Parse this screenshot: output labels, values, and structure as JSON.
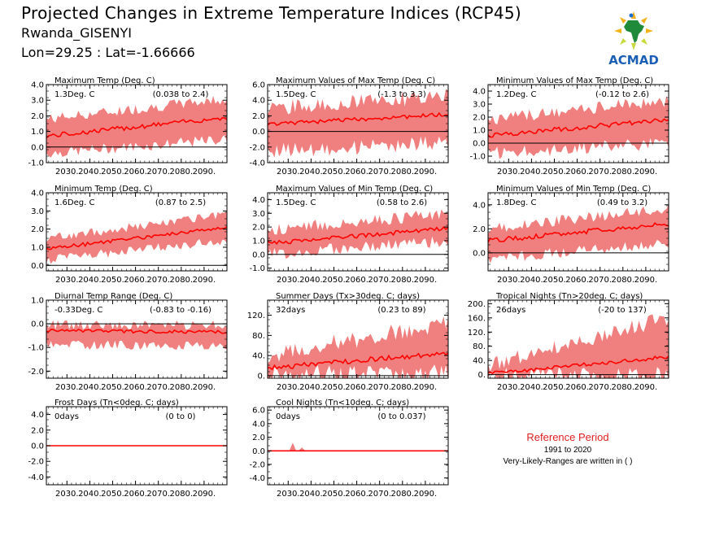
{
  "header": {
    "title": "Projected Changes in Extreme Temperature Indices (RCP45)",
    "station": "Rwanda_GISENYI",
    "coords": "Lon=29.25 : Lat=-1.66666"
  },
  "logo": {
    "text": "ACMAD",
    "icon": "africa-map-logo-icon"
  },
  "reference": {
    "title": "Reference Period",
    "years": "1991 to 2020",
    "note": "Very-Likely-Ranges are written in ( )"
  },
  "colors": {
    "band": "#f08080",
    "line": "#ff0000",
    "zero": "#000000"
  },
  "chart_data": [
    {
      "type": "area",
      "title": "Maximum Temp (Deg. C)",
      "value": "1.3Deg. C",
      "range": "(0.038 to 2.4)",
      "ylim": [
        -1.0,
        4.0
      ],
      "yticks": [
        "4.0",
        "3.0",
        "2.0",
        "1.0",
        "0.0",
        "-1.0"
      ],
      "ytick_values": [
        4,
        3,
        2,
        1,
        0,
        -1
      ],
      "x": [
        2021,
        2100
      ],
      "xticks": [
        "2030.",
        "2040.",
        "2050.",
        "2060.",
        "2070.",
        "2080.",
        "2090."
      ],
      "median": {
        "start": 0.7,
        "end": 1.9,
        "noise": 0.15
      },
      "band": {
        "low_start": -0.4,
        "low_end": 0.5,
        "high_start": 1.8,
        "high_end": 3.1,
        "noise": 0.35
      }
    },
    {
      "type": "area",
      "title": "Maximum Values of Max Temp (Deg. C)",
      "value": "1.5Deg. C",
      "range": "(-1.3 to 3.3)",
      "ylim": [
        -4.0,
        6.0
      ],
      "yticks": [
        "6.0",
        "4.0",
        "2.0",
        "0.0",
        "-2.0",
        "-4.0"
      ],
      "ytick_values": [
        6,
        4,
        2,
        0,
        -2,
        -4
      ],
      "x": [
        2021,
        2100
      ],
      "xticks": [
        "2030.",
        "2040.",
        "2050.",
        "2060.",
        "2070.",
        "2080.",
        "2090."
      ],
      "median": {
        "start": 0.9,
        "end": 2.2,
        "noise": 0.25
      },
      "band": {
        "low_start": -2.5,
        "low_end": -1.5,
        "high_start": 3.0,
        "high_end": 4.5,
        "noise": 1.0
      }
    },
    {
      "type": "area",
      "title": "Minimum Values of Max Temp (Deg. C)",
      "value": "1.2Deg. C",
      "range": "(-0.12 to 2.6)",
      "ylim": [
        -1.5,
        4.5
      ],
      "yticks": [
        "4.0",
        "3.0",
        "2.0",
        "1.0",
        "0.0",
        "-1.0"
      ],
      "ytick_values": [
        4,
        3,
        2,
        1,
        0,
        -1
      ],
      "x": [
        2021,
        2100
      ],
      "xticks": [
        "2030.",
        "2040.",
        "2050.",
        "2060.",
        "2070.",
        "2080.",
        "2090."
      ],
      "median": {
        "start": 0.6,
        "end": 1.8,
        "noise": 0.18
      },
      "band": {
        "low_start": -0.8,
        "low_end": 0.0,
        "high_start": 1.8,
        "high_end": 3.3,
        "noise": 0.5
      }
    },
    {
      "type": "area",
      "title": "Minimum Temp (Deg. C)",
      "value": "1.6Deg. C",
      "range": "(0.87 to 2.5)",
      "ylim": [
        -0.3,
        4.0
      ],
      "yticks": [
        "4.0",
        "3.0",
        "2.0",
        "1.0",
        "0.0"
      ],
      "ytick_values": [
        4,
        3,
        2,
        1,
        0
      ],
      "x": [
        2021,
        2100
      ],
      "xticks": [
        "2030.",
        "2040.",
        "2050.",
        "2060.",
        "2070.",
        "2080.",
        "2090."
      ],
      "median": {
        "start": 0.9,
        "end": 2.1,
        "noise": 0.1
      },
      "band": {
        "low_start": 0.3,
        "low_end": 1.4,
        "high_start": 1.5,
        "high_end": 2.8,
        "noise": 0.25
      }
    },
    {
      "type": "area",
      "title": "Maximum Values of Min Temp (Deg. C)",
      "value": "1.5Deg. C",
      "range": "(0.58 to 2.6)",
      "ylim": [
        -1.2,
        4.5
      ],
      "yticks": [
        "4.0",
        "3.0",
        "2.0",
        "1.0",
        "0.0",
        "-1.0"
      ],
      "ytick_values": [
        4,
        3,
        2,
        1,
        0,
        -1
      ],
      "x": [
        2021,
        2100
      ],
      "xticks": [
        "2030.",
        "2040.",
        "2050.",
        "2060.",
        "2070.",
        "2080.",
        "2090."
      ],
      "median": {
        "start": 0.8,
        "end": 1.9,
        "noise": 0.15
      },
      "band": {
        "low_start": 0.0,
        "low_end": 1.0,
        "high_start": 1.8,
        "high_end": 3.0,
        "noise": 0.45
      }
    },
    {
      "type": "area",
      "title": "Minimum Values of Min Temp (Deg. C)",
      "value": "1.8Deg. C",
      "range": "(0.49 to 3.2)",
      "ylim": [
        -1.5,
        5.0
      ],
      "yticks": [
        "4.0",
        "2.0",
        "0.0"
      ],
      "ytick_values": [
        4,
        2,
        0
      ],
      "x": [
        2021,
        2100
      ],
      "xticks": [
        "2030.",
        "2040.",
        "2050.",
        "2060.",
        "2070.",
        "2080.",
        "2090."
      ],
      "median": {
        "start": 1.0,
        "end": 2.4,
        "noise": 0.2
      },
      "band": {
        "low_start": -0.5,
        "low_end": 0.8,
        "high_start": 2.0,
        "high_end": 3.7,
        "noise": 0.45
      }
    },
    {
      "type": "area",
      "title": "Diurnal Temp Range (Deg. C)",
      "value": "-0.33Deg. C",
      "range": "(-0.83 to -0.16)",
      "ylim": [
        -2.3,
        1.0
      ],
      "yticks": [
        "1.0",
        "0.0",
        "-1.0",
        "-2.0"
      ],
      "ytick_values": [
        1,
        0,
        -1,
        -2
      ],
      "x": [
        2021,
        2100
      ],
      "xticks": [
        "2030.",
        "2040.",
        "2050.",
        "2060.",
        "2070.",
        "2080.",
        "2090."
      ],
      "median": {
        "start": -0.3,
        "end": -0.35,
        "noise": 0.07
      },
      "band": {
        "low_start": -0.9,
        "low_end": -0.9,
        "high_start": -0.05,
        "high_end": -0.05,
        "noise": 0.2
      }
    },
    {
      "type": "area",
      "title": "Summer Days (Tx>30deg. C; days)",
      "value": "32days",
      "range": "(0.23 to 89)",
      "ylim": [
        -5,
        150
      ],
      "yticks": [
        "120.",
        "80.",
        "40.",
        "0."
      ],
      "ytick_values": [
        120,
        80,
        40,
        0
      ],
      "x": [
        2021,
        2100
      ],
      "xticks": [
        "2030.",
        "2040.",
        "2050.",
        "2060.",
        "2070.",
        "2080.",
        "2090."
      ],
      "median": {
        "start": 15,
        "end": 45,
        "noise": 5
      },
      "band": {
        "low_start": 2,
        "low_end": 5,
        "high_start": 40,
        "high_end": 105,
        "noise": 18
      }
    },
    {
      "type": "area",
      "title": "Tropical Nights (Tn>20deg. C; days)",
      "value": "26days",
      "range": "(-20 to 137)",
      "ylim": [
        -10,
        210
      ],
      "yticks": [
        "200.",
        "160.",
        "120.",
        "80.",
        "40.",
        "0."
      ],
      "ytick_values": [
        200,
        160,
        120,
        80,
        40,
        0
      ],
      "x": [
        2021,
        2100
      ],
      "xticks": [
        "2030.",
        "2040.",
        "2050.",
        "2060.",
        "2070.",
        "2080.",
        "2090."
      ],
      "median": {
        "start": 3,
        "end": 50,
        "noise": 5
      },
      "band": {
        "low_start": 0,
        "low_end": 0,
        "high_start": 25,
        "high_end": 160,
        "noise": 22
      }
    },
    {
      "type": "area",
      "title": "Frost Days (Tn<0deg. C; days)",
      "value": "0days",
      "range": "(0 to 0)",
      "ylim": [
        -5.0,
        5.0
      ],
      "yticks": [
        "4.0",
        "2.0",
        "0.0",
        "-2.0",
        "-4.0"
      ],
      "ytick_values": [
        4,
        2,
        0,
        -2,
        -4
      ],
      "x": [
        2021,
        2100
      ],
      "xticks": [
        "2030.",
        "2040.",
        "2050.",
        "2060.",
        "2070.",
        "2080.",
        "2090."
      ],
      "median": {
        "start": 0,
        "end": 0,
        "noise": 0
      },
      "band": {
        "low_start": 0,
        "low_end": 0,
        "high_start": 0,
        "high_end": 0,
        "noise": 0
      }
    },
    {
      "type": "area",
      "title": "Cool Nights (Tn<10deg. C; days)",
      "value": "0days",
      "range": "(0 to 0.037)",
      "ylim": [
        -5.0,
        6.5
      ],
      "yticks": [
        "6.0",
        "4.0",
        "2.0",
        "0.0",
        "-2.0",
        "-4.0"
      ],
      "ytick_values": [
        6,
        4,
        2,
        0,
        -2,
        -4
      ],
      "x": [
        2021,
        2100
      ],
      "xticks": [
        "2030.",
        "2040.",
        "2050.",
        "2060.",
        "2070.",
        "2080.",
        "2090."
      ],
      "median": {
        "start": 0,
        "end": 0,
        "noise": 0
      },
      "band": {
        "low_start": 0,
        "low_end": 0,
        "high_start": 0,
        "high_end": 0,
        "noise": 0
      },
      "spikes": [
        {
          "year": 2032,
          "value": 1.2
        },
        {
          "year": 2036,
          "value": 0.5
        }
      ]
    }
  ]
}
